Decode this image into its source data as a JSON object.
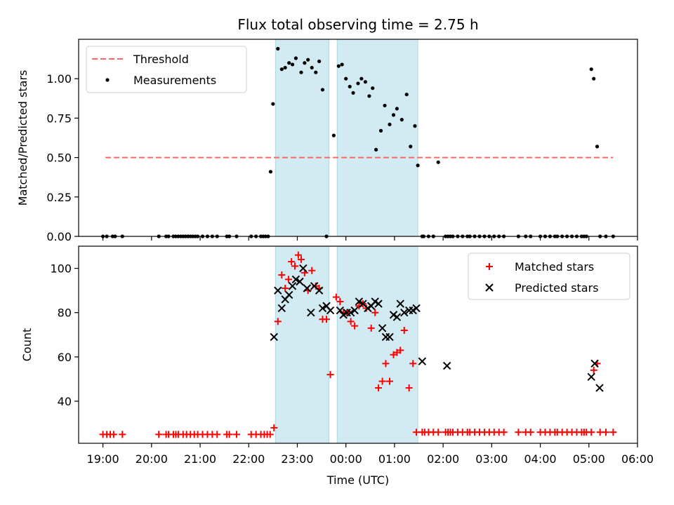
{
  "chart_data": {
    "title": "Flux total observing time = 2.75 h",
    "xlabel": "Time (UTC)",
    "x_ticks": [
      "19:00",
      "20:00",
      "21:00",
      "22:00",
      "23:00",
      "00:00",
      "01:00",
      "02:00",
      "03:00",
      "04:00",
      "05:00",
      "06:00"
    ],
    "xlim_hours": [
      18.5,
      30.0
    ],
    "shaded_intervals_hours": [
      [
        22.55,
        23.65
      ],
      [
        23.82,
        25.48
      ]
    ],
    "shade_color": "#add8e6",
    "panels": [
      {
        "type": "scatter",
        "ylabel": "Matched/Predicted stars",
        "ylim": [
          0,
          1.25
        ],
        "y_ticks": [
          "0.00",
          "0.25",
          "0.50",
          "0.75",
          "1.00"
        ],
        "legend": {
          "position": "upper-left",
          "entries": [
            "Threshold",
            "Measurements"
          ]
        },
        "threshold": {
          "name": "Threshold",
          "y": 0.5,
          "x_range_hours": [
            19.05,
            29.5
          ],
          "color": "#ff6666",
          "style": "dashed"
        },
        "series": [
          {
            "name": "Measurements",
            "marker": "dot",
            "color": "#000000",
            "x": [
              19.0,
              19.08,
              19.2,
              19.25,
              19.4,
              20.15,
              20.3,
              20.35,
              20.45,
              20.5,
              20.55,
              20.6,
              20.65,
              20.7,
              20.75,
              20.8,
              20.85,
              20.9,
              20.95,
              21.05,
              21.15,
              21.25,
              21.35,
              21.55,
              21.6,
              21.75,
              22.05,
              22.15,
              22.25,
              22.3,
              22.35,
              22.4,
              22.45,
              22.5,
              22.6,
              22.68,
              22.75,
              22.83,
              22.9,
              22.97,
              23.08,
              23.15,
              23.22,
              23.3,
              23.38,
              23.45,
              23.52,
              23.6,
              23.75,
              23.85,
              23.92,
              24.0,
              24.08,
              24.15,
              24.25,
              24.32,
              24.4,
              24.48,
              24.55,
              24.62,
              24.72,
              24.8,
              24.9,
              24.98,
              25.05,
              25.15,
              25.25,
              25.33,
              25.42,
              25.48,
              25.57,
              25.6,
              25.7,
              25.8,
              25.9,
              26.05,
              26.1,
              26.15,
              26.2,
              26.3,
              26.4,
              26.5,
              26.55,
              26.65,
              26.75,
              26.85,
              26.95,
              27.05,
              27.15,
              27.25,
              27.55,
              27.7,
              27.8,
              28.0,
              28.1,
              28.2,
              28.3,
              28.35,
              28.45,
              28.55,
              28.65,
              28.75,
              28.85,
              28.9,
              28.95,
              29.05,
              29.1,
              29.17,
              29.23,
              29.35,
              29.5
            ],
            "y": [
              0,
              0,
              0,
              0,
              0,
              0,
              0,
              0,
              0,
              0,
              0,
              0,
              0,
              0,
              0,
              0,
              0,
              0,
              0,
              0,
              0,
              0,
              0,
              0,
              0,
              0,
              0,
              0,
              0,
              0,
              0,
              0,
              0.41,
              0.84,
              1.19,
              1.06,
              1.07,
              1.1,
              1.09,
              1.13,
              1.04,
              1.1,
              1.12,
              1.07,
              1.04,
              1.11,
              0.93,
              0,
              0.64,
              1.08,
              1.09,
              1.0,
              0.95,
              0.91,
              0.97,
              1.0,
              0.98,
              0.89,
              0.94,
              0.55,
              0.67,
              0.83,
              0.71,
              0.77,
              0.81,
              0.74,
              0.9,
              0.57,
              0.7,
              0.45,
              0,
              0,
              0,
              0,
              0.47,
              0,
              0,
              0,
              0,
              0,
              0,
              0,
              0,
              0,
              0,
              0,
              0,
              0,
              0,
              0,
              0,
              0,
              0,
              0,
              0,
              0,
              0,
              0,
              0,
              0,
              0,
              0,
              0,
              0,
              0,
              1.06,
              1.0,
              0.57,
              0,
              0,
              0
            ]
          }
        ]
      },
      {
        "type": "scatter",
        "ylabel": "Count",
        "ylim": [
          21,
          110
        ],
        "y_ticks": [
          "40",
          "60",
          "80",
          "100"
        ],
        "legend": {
          "position": "upper-right",
          "entries": [
            "Matched stars",
            "Predicted stars"
          ]
        },
        "series": [
          {
            "name": "Matched stars",
            "marker": "plus",
            "color": "#ff0000",
            "x": [
              19.0,
              19.08,
              19.15,
              19.22,
              19.4,
              20.15,
              20.3,
              20.35,
              20.45,
              20.5,
              20.55,
              20.65,
              20.72,
              20.8,
              20.88,
              20.95,
              21.05,
              21.15,
              21.25,
              21.35,
              21.55,
              21.6,
              21.75,
              22.05,
              22.15,
              22.25,
              22.32,
              22.38,
              22.44,
              22.52,
              22.6,
              22.68,
              22.75,
              22.82,
              22.88,
              22.95,
              23.02,
              23.08,
              23.15,
              23.22,
              23.3,
              23.38,
              23.45,
              23.52,
              23.6,
              23.68,
              23.8,
              23.88,
              23.95,
              24.02,
              24.1,
              24.18,
              24.27,
              24.35,
              24.42,
              24.52,
              24.6,
              24.67,
              24.75,
              24.82,
              24.9,
              24.98,
              25.05,
              25.12,
              25.2,
              25.3,
              25.38,
              25.45,
              25.57,
              25.62,
              25.7,
              25.8,
              25.9,
              26.05,
              26.1,
              26.15,
              26.2,
              26.3,
              26.4,
              26.5,
              26.55,
              26.65,
              26.75,
              26.85,
              26.95,
              27.05,
              27.15,
              27.25,
              27.55,
              27.7,
              27.8,
              28.0,
              28.1,
              28.2,
              28.3,
              28.35,
              28.45,
              28.55,
              28.65,
              28.75,
              28.85,
              28.9,
              28.95,
              29.05,
              29.1,
              29.17,
              29.23,
              29.35,
              29.5
            ],
            "y": [
              25,
              25,
              25,
              25,
              25,
              25,
              25,
              25,
              25,
              25,
              25,
              25,
              25,
              25,
              25,
              25,
              25,
              25,
              25,
              25,
              25,
              25,
              25,
              25,
              25,
              25,
              25,
              25,
              25,
              28,
              76,
              97,
              91,
              95,
              103,
              101,
              106,
              104,
              98,
              90,
              99,
              92,
              91,
              77,
              77,
              52,
              87,
              85,
              80,
              80,
              76,
              74,
              83,
              84,
              82,
              73,
              80,
              46,
              49,
              57,
              49,
              61,
              62,
              63,
              72,
              46,
              57,
              26,
              26,
              26,
              26,
              26,
              26,
              26,
              26,
              26,
              26,
              26,
              26,
              26,
              26,
              26,
              26,
              26,
              26,
              26,
              26,
              26,
              26,
              26,
              26,
              26,
              26,
              26,
              26,
              26,
              26,
              26,
              26,
              26,
              26,
              26,
              26,
              26,
              54,
              57,
              26,
              26,
              26
            ]
          },
          {
            "name": "Predicted stars",
            "marker": "x",
            "color": "#000000",
            "x": [
              22.52,
              22.6,
              22.68,
              22.75,
              22.83,
              22.9,
              22.97,
              23.05,
              23.12,
              23.2,
              23.28,
              23.35,
              23.45,
              23.52,
              23.6,
              23.68,
              23.88,
              23.95,
              24.02,
              24.1,
              24.18,
              24.27,
              24.35,
              24.45,
              24.52,
              24.6,
              24.67,
              24.75,
              24.82,
              24.9,
              24.98,
              25.05,
              25.12,
              25.2,
              25.3,
              25.38,
              25.45,
              25.57,
              26.08,
              29.05,
              29.12,
              29.22
            ],
            "y": [
              69,
              90,
              82,
              86,
              88,
              92,
              95,
              94,
              100,
              91,
              80,
              92,
              90,
              82,
              83,
              81,
              81,
              79,
              80,
              80,
              81,
              85,
              84,
              82,
              83,
              85,
              84,
              73,
              69,
              69,
              79,
              78,
              84,
              80,
              81,
              81,
              82,
              58,
              56,
              51,
              57,
              46
            ]
          }
        ]
      }
    ]
  }
}
